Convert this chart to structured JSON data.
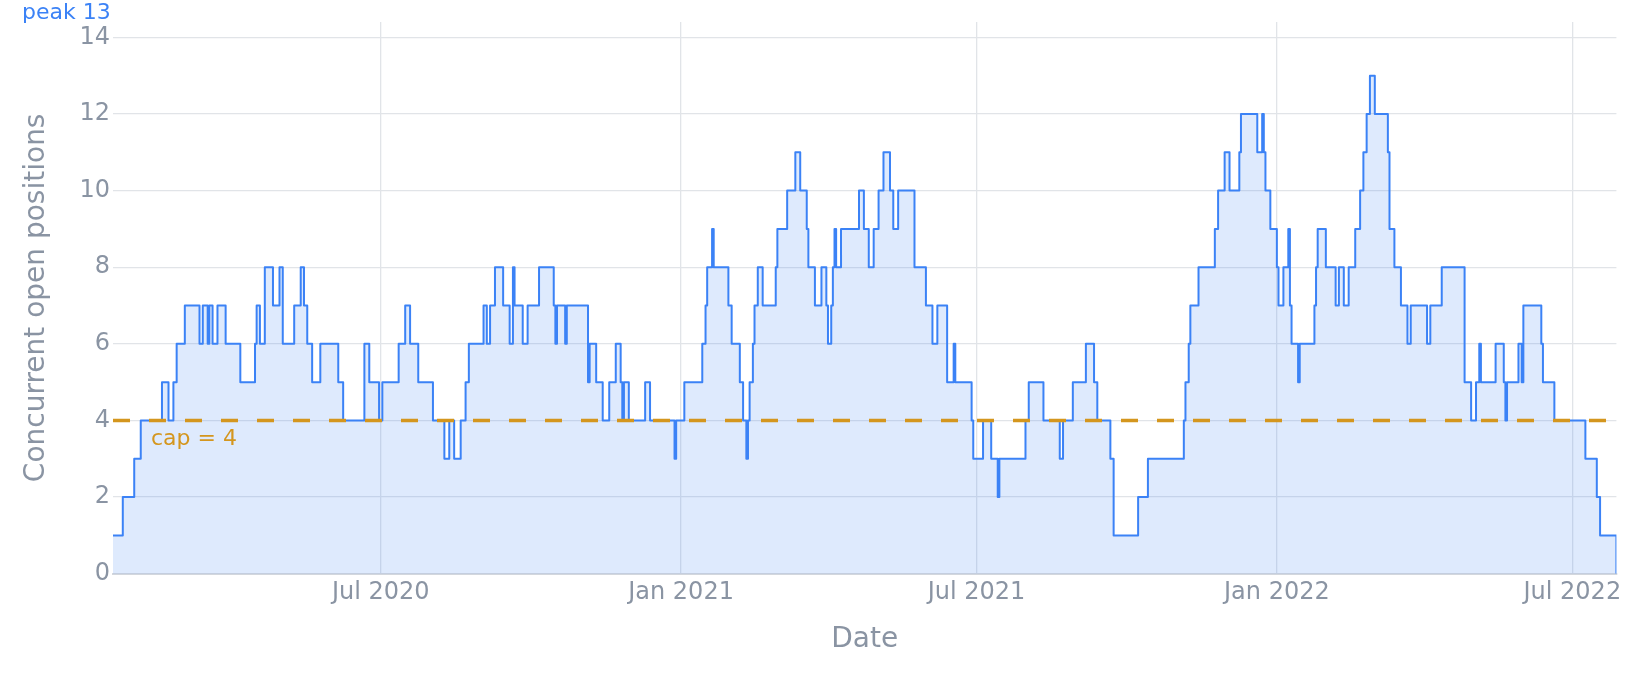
{
  "chart_data": {
    "type": "step",
    "xlabel": "Date",
    "ylabel": "Concurrent open positions",
    "x": [
      "2020-01-19",
      "2020-01-25",
      "2020-02-01",
      "2020-02-05",
      "2020-02-18",
      "2020-02-22",
      "2020-02-25",
      "2020-02-27",
      "2020-03-03",
      "2020-03-12",
      "2020-03-14",
      "2020-03-17",
      "2020-03-18",
      "2020-03-20",
      "2020-03-23",
      "2020-03-28",
      "2020-04-06",
      "2020-04-15",
      "2020-04-16",
      "2020-04-18",
      "2020-04-21",
      "2020-04-26",
      "2020-04-30",
      "2020-05-02",
      "2020-05-09",
      "2020-05-13",
      "2020-05-15",
      "2020-05-17",
      "2020-05-20",
      "2020-05-25",
      "2020-06-05",
      "2020-06-08",
      "2020-06-21",
      "2020-06-24",
      "2020-06-30",
      "2020-07-02",
      "2020-07-12",
      "2020-07-16",
      "2020-07-19",
      "2020-07-24",
      "2020-08-02",
      "2020-08-09",
      "2020-08-12",
      "2020-08-15",
      "2020-08-19",
      "2020-08-22",
      "2020-08-24",
      "2020-09-02",
      "2020-09-04",
      "2020-09-06",
      "2020-09-09",
      "2020-09-14",
      "2020-09-18",
      "2020-09-20",
      "2020-09-21",
      "2020-09-26",
      "2020-09-29",
      "2020-10-06",
      "2020-10-15",
      "2020-10-16",
      "2020-10-17",
      "2020-10-22",
      "2020-10-23",
      "2020-11-05",
      "2020-11-06",
      "2020-11-10",
      "2020-11-14",
      "2020-11-18",
      "2020-11-22",
      "2020-11-25",
      "2020-11-26",
      "2020-11-27",
      "2020-11-30",
      "2020-12-10",
      "2020-12-13",
      "2020-12-28",
      "2020-12-29",
      "2021-01-03",
      "2021-01-14",
      "2021-01-16",
      "2021-01-17",
      "2021-01-20",
      "2021-01-21",
      "2021-01-30",
      "2021-02-01",
      "2021-02-06",
      "2021-02-08",
      "2021-02-10",
      "2021-02-11",
      "2021-02-12",
      "2021-02-14",
      "2021-02-15",
      "2021-02-17",
      "2021-02-20",
      "2021-02-28",
      "2021-03-01",
      "2021-03-07",
      "2021-03-12",
      "2021-03-15",
      "2021-03-19",
      "2021-03-20",
      "2021-03-24",
      "2021-03-28",
      "2021-03-31",
      "2021-04-01",
      "2021-04-03",
      "2021-04-04",
      "2021-04-05",
      "2021-04-06",
      "2021-04-09",
      "2021-04-20",
      "2021-04-23",
      "2021-04-26",
      "2021-04-29",
      "2021-05-02",
      "2021-05-05",
      "2021-05-09",
      "2021-05-11",
      "2021-05-14",
      "2021-05-24",
      "2021-05-31",
      "2021-06-04",
      "2021-06-07",
      "2021-06-13",
      "2021-06-17",
      "2021-06-18",
      "2021-06-28",
      "2021-06-29",
      "2021-07-05",
      "2021-07-10",
      "2021-07-14",
      "2021-07-15",
      "2021-07-31",
      "2021-08-02",
      "2021-08-11",
      "2021-08-21",
      "2021-08-23",
      "2021-08-29",
      "2021-09-06",
      "2021-09-11",
      "2021-09-13",
      "2021-09-21",
      "2021-09-23",
      "2021-10-08",
      "2021-10-14",
      "2021-11-05",
      "2021-11-06",
      "2021-11-08",
      "2021-11-09",
      "2021-11-14",
      "2021-11-24",
      "2021-11-26",
      "2021-11-30",
      "2021-12-03",
      "2021-12-09",
      "2021-12-10",
      "2021-12-20",
      "2021-12-23",
      "2021-12-24",
      "2021-12-25",
      "2021-12-28",
      "2022-01-01",
      "2022-01-02",
      "2022-01-05",
      "2022-01-08",
      "2022-01-09",
      "2022-01-10",
      "2022-01-14",
      "2022-01-15",
      "2022-01-24",
      "2022-01-25",
      "2022-01-26",
      "2022-01-31",
      "2022-02-06",
      "2022-02-08",
      "2022-02-11",
      "2022-02-14",
      "2022-02-18",
      "2022-02-21",
      "2022-02-23",
      "2022-02-25",
      "2022-02-27",
      "2022-03-02",
      "2022-03-10",
      "2022-03-11",
      "2022-03-14",
      "2022-03-18",
      "2022-03-22",
      "2022-03-24",
      "2022-04-03",
      "2022-04-05",
      "2022-04-12",
      "2022-04-26",
      "2022-04-30",
      "2022-05-03",
      "2022-05-05",
      "2022-05-06",
      "2022-05-15",
      "2022-05-20",
      "2022-05-21",
      "2022-05-22",
      "2022-05-29",
      "2022-05-31",
      "2022-06-01",
      "2022-06-12",
      "2022-06-13",
      "2022-06-20",
      "2022-07-09",
      "2022-07-16",
      "2022-07-18",
      "2022-07-28"
    ],
    "series": [
      {
        "color": "#3b82f6",
        "values": [
          1,
          2,
          3,
          4,
          5,
          4,
          5,
          6,
          7,
          6,
          7,
          6,
          7,
          6,
          7,
          6,
          5,
          6,
          7,
          6,
          8,
          7,
          8,
          6,
          7,
          8,
          7,
          6,
          5,
          6,
          5,
          4,
          6,
          5,
          4,
          5,
          6,
          7,
          6,
          5,
          4,
          3,
          4,
          3,
          4,
          5,
          6,
          7,
          6,
          7,
          8,
          7,
          6,
          8,
          7,
          6,
          7,
          8,
          7,
          6,
          7,
          6,
          7,
          5,
          6,
          5,
          4,
          5,
          6,
          5,
          4,
          5,
          4,
          5,
          4,
          3,
          4,
          5,
          6,
          7,
          8,
          9,
          8,
          7,
          6,
          5,
          4,
          3,
          4,
          5,
          6,
          7,
          8,
          7,
          8,
          9,
          10,
          11,
          10,
          9,
          8,
          7,
          8,
          7,
          6,
          7,
          8,
          9,
          8,
          9,
          10,
          9,
          8,
          9,
          10,
          11,
          10,
          9,
          10,
          8,
          7,
          6,
          7,
          5,
          6,
          5,
          4,
          3,
          4,
          3,
          2,
          3,
          4,
          5,
          4,
          3,
          4,
          5,
          6,
          5,
          4,
          3,
          1,
          2,
          3,
          4,
          5,
          6,
          7,
          8,
          9,
          10,
          11,
          10,
          11,
          12,
          11,
          12,
          11,
          10,
          9,
          8,
          7,
          8,
          9,
          7,
          6,
          5,
          6,
          7,
          8,
          9,
          8,
          7,
          8,
          7,
          8,
          9,
          10,
          11,
          12,
          13,
          12,
          11,
          9,
          8,
          7,
          6,
          7,
          6,
          7,
          8,
          5,
          4,
          5,
          6,
          5,
          6,
          5,
          4,
          5,
          6,
          5,
          7,
          6,
          5,
          4,
          3,
          2,
          1,
          0
        ]
      }
    ],
    "xlim": [
      "2020-01-19",
      "2022-07-28"
    ],
    "ylim": [
      0,
      14.4
    ],
    "xticks": [
      {
        "value": "2020-07",
        "label": "Jul 2020"
      },
      {
        "value": "2021-01",
        "label": "Jan 2021"
      },
      {
        "value": "2021-07",
        "label": "Jul 2021"
      },
      {
        "value": "2022-01",
        "label": "Jan 2022"
      },
      {
        "value": "2022-07",
        "label": "Jul 2022"
      }
    ],
    "yticks": [
      0,
      2,
      4,
      6,
      8,
      10,
      12,
      14
    ],
    "grid": true,
    "ref_lines": [
      {
        "axis": "y",
        "value": 4,
        "label": "cap = 4",
        "color": "#d4961e",
        "line_style": "dashed"
      }
    ],
    "annotations": [
      "peak 13"
    ]
  }
}
